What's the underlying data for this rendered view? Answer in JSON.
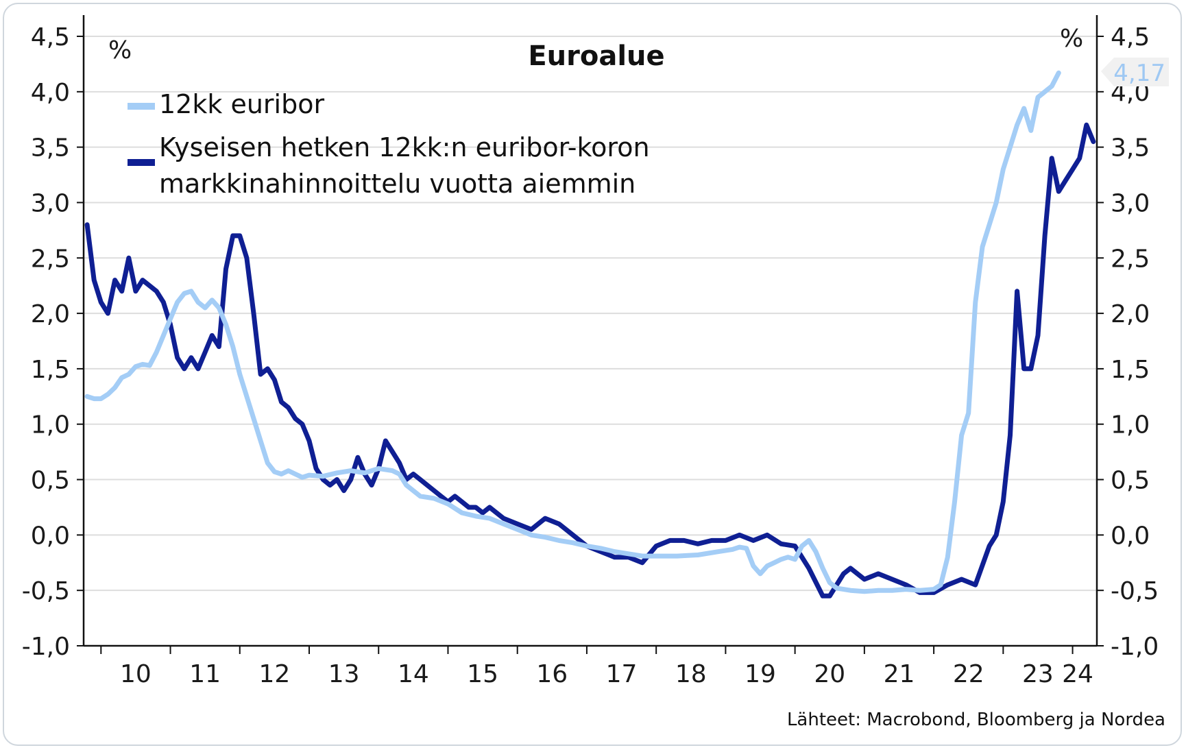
{
  "chart_data": {
    "type": "line",
    "title": "Euroalue",
    "unit_left": "%",
    "unit_right": "%",
    "source": "Lähteet: Macrobond, Bloomberg ja Nordea",
    "ylim": [
      -1.0,
      4.5
    ],
    "yticks": [
      "4,5",
      "4,0",
      "3,5",
      "3,0",
      "2,5",
      "2,0",
      "1,5",
      "1,0",
      "0,5",
      "0,0",
      "-0,5",
      "-1,0"
    ],
    "xticks": [
      "10",
      "11",
      "12",
      "13",
      "14",
      "15",
      "16",
      "17",
      "18",
      "19",
      "20",
      "21",
      "22",
      "23",
      "24"
    ],
    "xlim": [
      2009.75,
      2024.35
    ],
    "last_value_tag": "4,17",
    "grid": true,
    "legend_position": "top-left",
    "colors": {
      "series1": "#a4cdf6",
      "series2": "#0f1f93",
      "grid": "#dddddd",
      "axis": "#111111",
      "tag_bg": "#f1f1f1"
    },
    "series": [
      {
        "name": "12kk euribor",
        "x": [
          2009.8,
          2009.9,
          2010.0,
          2010.1,
          2010.2,
          2010.3,
          2010.4,
          2010.5,
          2010.6,
          2010.7,
          2010.8,
          2010.9,
          2011.0,
          2011.1,
          2011.2,
          2011.3,
          2011.4,
          2011.5,
          2011.6,
          2011.7,
          2011.8,
          2011.9,
          2012.0,
          2012.1,
          2012.2,
          2012.3,
          2012.4,
          2012.5,
          2012.6,
          2012.7,
          2012.8,
          2012.9,
          2013.0,
          2013.2,
          2013.4,
          2013.6,
          2013.8,
          2014.0,
          2014.2,
          2014.3,
          2014.4,
          2014.6,
          2014.8,
          2015.0,
          2015.2,
          2015.4,
          2015.6,
          2015.8,
          2016.0,
          2016.2,
          2016.4,
          2016.6,
          2016.8,
          2017.0,
          2017.2,
          2017.4,
          2017.6,
          2017.8,
          2018.0,
          2018.3,
          2018.6,
          2018.9,
          2019.1,
          2019.2,
          2019.3,
          2019.4,
          2019.5,
          2019.6,
          2019.7,
          2019.8,
          2019.9,
          2020.0,
          2020.1,
          2020.2,
          2020.3,
          2020.4,
          2020.5,
          2020.6,
          2020.8,
          2021.0,
          2021.2,
          2021.4,
          2021.6,
          2021.8,
          2022.0,
          2022.1,
          2022.2,
          2022.3,
          2022.4,
          2022.5,
          2022.6,
          2022.7,
          2022.8,
          2022.9,
          2023.0,
          2023.1,
          2023.2,
          2023.3,
          2023.4,
          2023.5,
          2023.6,
          2023.7,
          2023.8
        ],
        "values": [
          1.25,
          1.23,
          1.23,
          1.27,
          1.33,
          1.42,
          1.45,
          1.52,
          1.54,
          1.53,
          1.65,
          1.8,
          1.95,
          2.1,
          2.18,
          2.2,
          2.1,
          2.05,
          2.12,
          2.05,
          1.9,
          1.7,
          1.45,
          1.25,
          1.05,
          0.85,
          0.65,
          0.57,
          0.55,
          0.58,
          0.55,
          0.52,
          0.54,
          0.53,
          0.56,
          0.58,
          0.56,
          0.6,
          0.58,
          0.55,
          0.45,
          0.35,
          0.33,
          0.28,
          0.2,
          0.17,
          0.15,
          0.1,
          0.05,
          0.0,
          -0.02,
          -0.05,
          -0.07,
          -0.1,
          -0.12,
          -0.15,
          -0.17,
          -0.19,
          -0.19,
          -0.19,
          -0.18,
          -0.15,
          -0.13,
          -0.11,
          -0.12,
          -0.28,
          -0.35,
          -0.28,
          -0.25,
          -0.22,
          -0.2,
          -0.22,
          -0.1,
          -0.05,
          -0.15,
          -0.3,
          -0.43,
          -0.48,
          -0.5,
          -0.51,
          -0.5,
          -0.5,
          -0.49,
          -0.5,
          -0.49,
          -0.45,
          -0.2,
          0.3,
          0.9,
          1.1,
          2.1,
          2.6,
          2.8,
          3.0,
          3.3,
          3.5,
          3.7,
          3.85,
          3.65,
          3.95,
          4.0,
          4.05,
          4.17
        ]
      },
      {
        "name": "Kyseisen hetken 12kk:n euribor-koron markkinahinnoittelu vuotta aiemmin",
        "x": [
          2009.8,
          2009.9,
          2010.0,
          2010.1,
          2010.2,
          2010.3,
          2010.4,
          2010.5,
          2010.6,
          2010.7,
          2010.8,
          2010.9,
          2011.0,
          2011.1,
          2011.2,
          2011.3,
          2011.4,
          2011.5,
          2011.6,
          2011.7,
          2011.8,
          2011.9,
          2012.0,
          2012.1,
          2012.2,
          2012.3,
          2012.4,
          2012.5,
          2012.6,
          2012.7,
          2012.8,
          2012.9,
          2013.0,
          2013.1,
          2013.2,
          2013.3,
          2013.4,
          2013.5,
          2013.6,
          2013.7,
          2013.8,
          2013.9,
          2014.0,
          2014.1,
          2014.2,
          2014.3,
          2014.4,
          2014.5,
          2014.6,
          2014.7,
          2014.8,
          2014.9,
          2015.0,
          2015.1,
          2015.2,
          2015.3,
          2015.4,
          2015.5,
          2015.6,
          2015.8,
          2016.0,
          2016.2,
          2016.4,
          2016.6,
          2016.8,
          2017.0,
          2017.2,
          2017.4,
          2017.6,
          2017.8,
          2018.0,
          2018.2,
          2018.4,
          2018.6,
          2018.8,
          2019.0,
          2019.2,
          2019.4,
          2019.6,
          2019.8,
          2020.0,
          2020.2,
          2020.4,
          2020.5,
          2020.6,
          2020.7,
          2020.8,
          2021.0,
          2021.2,
          2021.4,
          2021.6,
          2021.8,
          2022.0,
          2022.2,
          2022.4,
          2022.6,
          2022.8,
          2022.9,
          2023.0,
          2023.1,
          2023.2,
          2023.3,
          2023.4,
          2023.5,
          2023.6,
          2023.7,
          2023.8,
          2023.9,
          2024.0,
          2024.1,
          2024.2,
          2024.3
        ],
        "values": [
          2.8,
          2.3,
          2.1,
          2.0,
          2.3,
          2.2,
          2.5,
          2.2,
          2.3,
          2.25,
          2.2,
          2.1,
          1.9,
          1.6,
          1.5,
          1.6,
          1.5,
          1.65,
          1.8,
          1.7,
          2.4,
          2.7,
          2.7,
          2.5,
          2.0,
          1.45,
          1.5,
          1.4,
          1.2,
          1.15,
          1.05,
          1.0,
          0.85,
          0.6,
          0.5,
          0.45,
          0.5,
          0.4,
          0.5,
          0.7,
          0.55,
          0.45,
          0.6,
          0.85,
          0.75,
          0.65,
          0.5,
          0.55,
          0.5,
          0.45,
          0.4,
          0.35,
          0.3,
          0.35,
          0.3,
          0.25,
          0.25,
          0.2,
          0.25,
          0.15,
          0.1,
          0.05,
          0.15,
          0.1,
          0.0,
          -0.1,
          -0.15,
          -0.2,
          -0.2,
          -0.25,
          -0.1,
          -0.05,
          -0.05,
          -0.08,
          -0.05,
          -0.05,
          0.0,
          -0.05,
          0.0,
          -0.08,
          -0.1,
          -0.3,
          -0.55,
          -0.55,
          -0.45,
          -0.35,
          -0.3,
          -0.4,
          -0.35,
          -0.4,
          -0.45,
          -0.52,
          -0.52,
          -0.45,
          -0.4,
          -0.45,
          -0.1,
          0.0,
          0.3,
          0.9,
          2.2,
          1.5,
          1.5,
          1.8,
          2.7,
          3.4,
          3.1,
          3.2,
          3.3,
          3.4,
          3.7,
          3.55
        ]
      }
    ]
  }
}
